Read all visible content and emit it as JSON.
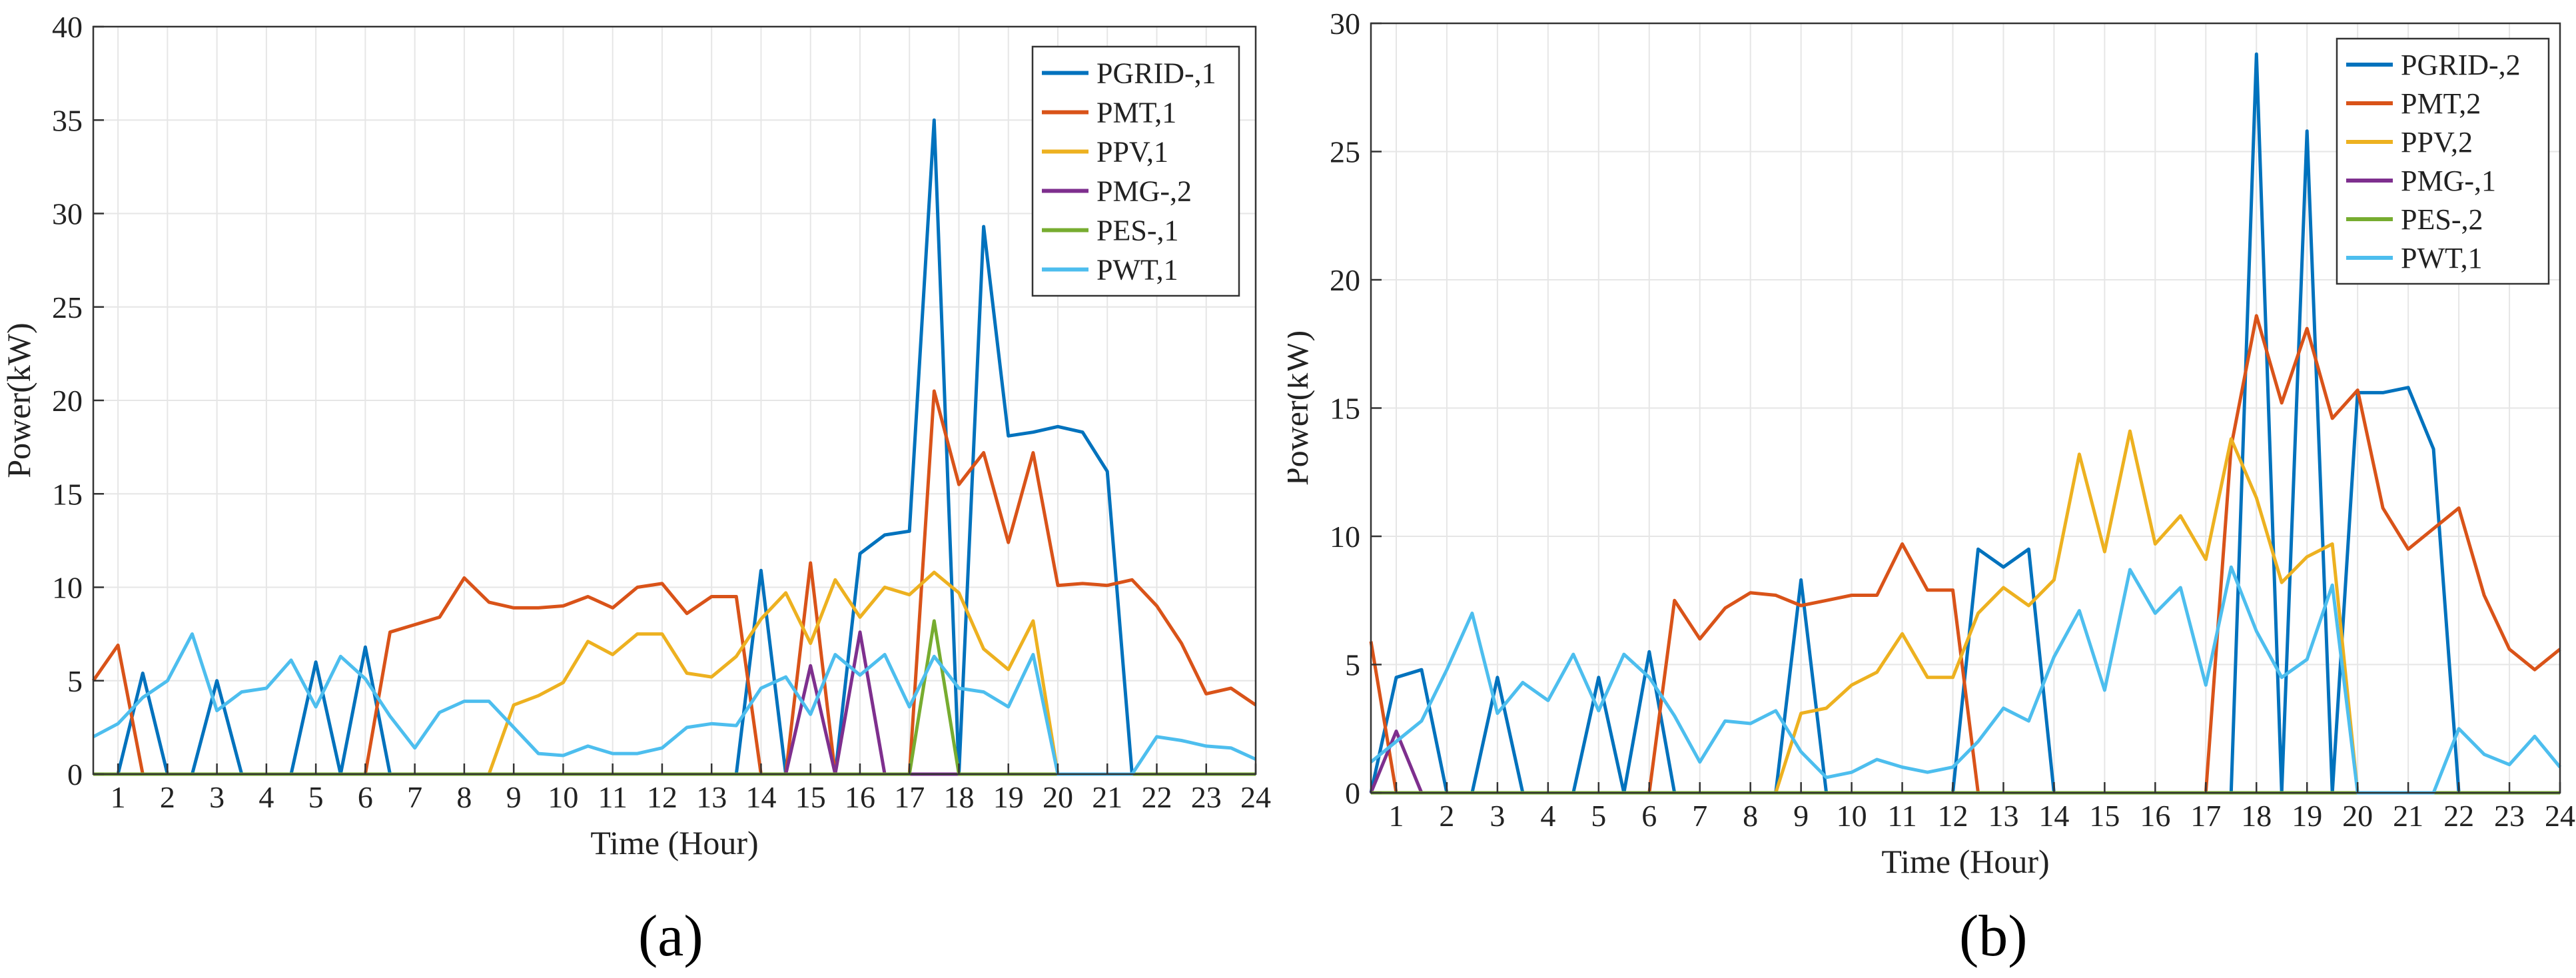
{
  "colors": {
    "grid": "#e6e6e6",
    "axis": "#333333",
    "background": "#ffffff",
    "legend_border": "#333333"
  },
  "captions": {
    "a": "(a)",
    "b": "(b)"
  },
  "chart_data": [
    {
      "type": "line",
      "panel": "a",
      "title": "",
      "xlabel": "Time (Hour)",
      "ylabel": "Power(kW)",
      "xlim": [
        0.5,
        24
      ],
      "ylim": [
        0,
        40
      ],
      "xticks": [
        1,
        2,
        3,
        4,
        5,
        6,
        7,
        8,
        9,
        10,
        11,
        12,
        13,
        14,
        15,
        16,
        17,
        18,
        19,
        20,
        21,
        22,
        23,
        24
      ],
      "yticks": [
        0,
        5,
        10,
        15,
        20,
        25,
        30,
        35,
        40
      ],
      "grid": true,
      "legend_position": "top-right",
      "series": [
        {
          "name": "PGRID-,1",
          "color": "#0072BD",
          "x": [
            0.5,
            1,
            1.5,
            2,
            2.5,
            3,
            3.5,
            4,
            4.5,
            5,
            5.5,
            6,
            6.5,
            7,
            7.5,
            8,
            8.5,
            9,
            9.5,
            10,
            10.5,
            11,
            11.5,
            12,
            12.5,
            13,
            13.5,
            14,
            14.5,
            15,
            15.5,
            16,
            16.5,
            17,
            17.5,
            18,
            18.5,
            19,
            19.5,
            20,
            20.5,
            21,
            21.5,
            22,
            22.5,
            23,
            23.5,
            24
          ],
          "y": [
            0,
            0,
            5.4,
            0,
            0,
            5,
            0,
            0,
            0,
            6,
            0,
            6.8,
            0,
            0,
            0,
            0,
            0,
            0,
            0,
            0,
            0,
            0,
            0,
            0,
            0,
            0,
            0,
            10.9,
            0,
            0,
            0,
            11.8,
            12.8,
            13,
            35,
            0,
            29.3,
            18.1,
            18.3,
            18.6,
            18.3,
            16.2,
            0,
            0,
            0,
            0,
            0,
            0
          ]
        },
        {
          "name": "PMT,1",
          "color": "#D95319",
          "x": [
            0.5,
            1,
            1.5,
            2,
            2.5,
            3,
            3.5,
            4,
            4.5,
            5,
            5.5,
            6,
            6.5,
            7,
            7.5,
            8,
            8.5,
            9,
            9.5,
            10,
            10.5,
            11,
            11.5,
            12,
            12.5,
            13,
            13.5,
            14,
            14.5,
            15,
            15.5,
            16,
            16.5,
            17,
            17.5,
            18,
            18.5,
            19,
            19.5,
            20,
            20.5,
            21,
            21.5,
            22,
            22.5,
            23,
            23.5,
            24
          ],
          "y": [
            5,
            6.9,
            0,
            0,
            0,
            0,
            0,
            0,
            0,
            0,
            0,
            0,
            7.6,
            8,
            8.4,
            10.5,
            9.2,
            8.9,
            8.9,
            9,
            9.5,
            8.9,
            10,
            10.2,
            8.6,
            9.5,
            9.5,
            0,
            0,
            11.3,
            0,
            0,
            0,
            0,
            20.5,
            15.5,
            17.2,
            12.4,
            17.2,
            10.1,
            10.2,
            10.1,
            10.4,
            9,
            7,
            4.3,
            4.6,
            3.7
          ]
        },
        {
          "name": "PPV,1",
          "color": "#EDB120",
          "x": [
            0.5,
            8,
            8.5,
            9,
            9.5,
            10,
            10.5,
            11,
            11.5,
            12,
            12.5,
            13,
            13.5,
            14,
            14.5,
            15,
            15.5,
            16,
            16.5,
            17,
            17.5,
            18,
            18.5,
            19,
            19.5,
            20,
            24
          ],
          "y": [
            0,
            0,
            0,
            3.7,
            4.2,
            4.9,
            7.1,
            6.4,
            7.5,
            7.5,
            5.4,
            5.2,
            6.3,
            8.3,
            9.7,
            7,
            10.4,
            8.4,
            10,
            9.6,
            10.8,
            9.7,
            6.7,
            5.6,
            8.2,
            0,
            0
          ]
        },
        {
          "name": "PMG-,2",
          "color": "#7E2F8E",
          "x": [
            0.5,
            14.5,
            15,
            15.5,
            16,
            16.5,
            17,
            24
          ],
          "y": [
            0,
            0,
            5.8,
            0,
            7.6,
            0,
            0,
            0
          ]
        },
        {
          "name": "PES-,1",
          "color": "#77AC30",
          "x": [
            0.5,
            17,
            17.5,
            18,
            24
          ],
          "y": [
            0,
            0,
            8.2,
            0,
            0
          ]
        },
        {
          "name": "PWT,1",
          "color": "#4DBEEE",
          "x": [
            0.5,
            1,
            1.5,
            2,
            2.5,
            3,
            3.5,
            4,
            4.5,
            5,
            5.5,
            6,
            6.5,
            7,
            7.5,
            8,
            8.5,
            9,
            9.5,
            10,
            10.5,
            11,
            11.5,
            12,
            12.5,
            13,
            13.5,
            14,
            14.5,
            15,
            15.5,
            16,
            16.5,
            17,
            17.5,
            18,
            18.5,
            19,
            19.5,
            20,
            20.5,
            21,
            21.5,
            22,
            22.5,
            23,
            23.5,
            24
          ],
          "y": [
            2,
            2.7,
            4.1,
            5,
            7.5,
            3.4,
            4.4,
            4.6,
            6.1,
            3.6,
            6.3,
            5.1,
            3.1,
            1.4,
            3.3,
            3.9,
            3.9,
            2.5,
            1.1,
            1,
            1.5,
            1.1,
            1.1,
            1.4,
            2.5,
            2.7,
            2.6,
            4.6,
            5.2,
            3.2,
            6.4,
            5.3,
            6.4,
            3.6,
            6.3,
            4.6,
            4.4,
            3.6,
            6.4,
            0,
            0,
            0,
            0,
            2,
            1.8,
            1.5,
            1.4,
            0.8
          ]
        }
      ]
    },
    {
      "type": "line",
      "panel": "b",
      "title": "",
      "xlabel": "Time (Hour)",
      "ylabel": "Power(kW)",
      "xlim": [
        0.5,
        24
      ],
      "ylim": [
        0,
        30
      ],
      "xticks": [
        1,
        2,
        3,
        4,
        5,
        6,
        7,
        8,
        9,
        10,
        11,
        12,
        13,
        14,
        15,
        16,
        17,
        18,
        19,
        20,
        21,
        22,
        23,
        24
      ],
      "yticks": [
        0,
        5,
        10,
        15,
        20,
        25,
        30
      ],
      "grid": true,
      "legend_position": "top-right",
      "series": [
        {
          "name": "PGRID-,2",
          "color": "#0072BD",
          "x": [
            0.5,
            1,
            1.5,
            2,
            2.5,
            3,
            3.5,
            4,
            4.5,
            5,
            5.5,
            6,
            6.5,
            7,
            7.5,
            8,
            8.5,
            9,
            9.5,
            10,
            10.5,
            11,
            11.5,
            12,
            12.5,
            13,
            13.5,
            14,
            14.5,
            15,
            15.5,
            16,
            16.5,
            17,
            17.5,
            18,
            18.5,
            19,
            19.5,
            20,
            20.5,
            21,
            21.5,
            22,
            22.5,
            23,
            23.5,
            24
          ],
          "y": [
            0,
            4.5,
            4.8,
            0,
            0,
            4.5,
            0,
            0,
            0,
            4.5,
            0,
            5.5,
            0,
            0,
            0,
            0,
            0,
            8.3,
            0,
            0,
            0,
            0,
            0,
            0,
            9.5,
            8.8,
            9.5,
            0,
            0,
            0,
            0,
            0,
            0,
            0,
            0,
            28.8,
            0,
            25.8,
            0,
            15.6,
            15.6,
            15.8,
            13.4,
            0,
            0,
            0,
            0,
            0
          ]
        },
        {
          "name": "PMT,2",
          "color": "#D95319",
          "x": [
            0.5,
            1,
            1.5,
            2,
            2.5,
            3,
            3.5,
            4,
            4.5,
            5,
            5.5,
            6,
            6.5,
            7,
            7.5,
            8,
            8.5,
            9,
            9.5,
            10,
            10.5,
            11,
            11.5,
            12,
            12.5,
            13,
            13.5,
            14,
            14.5,
            15,
            15.5,
            16,
            16.5,
            17,
            17.5,
            18,
            18.5,
            19,
            19.5,
            20,
            20.5,
            21,
            21.5,
            22,
            22.5,
            23,
            23.5,
            24
          ],
          "y": [
            5.9,
            0,
            0,
            0,
            0,
            0,
            0,
            0,
            0,
            0,
            0,
            0,
            7.5,
            6,
            7.2,
            7.8,
            7.7,
            7.3,
            7.5,
            7.7,
            7.7,
            9.7,
            7.9,
            7.9,
            0,
            0,
            0,
            0,
            0,
            0,
            0,
            0,
            0,
            0,
            13.5,
            18.6,
            15.2,
            18.1,
            14.6,
            15.7,
            11.1,
            9.5,
            10.3,
            11.1,
            7.7,
            5.6,
            4.8,
            5.6
          ]
        },
        {
          "name": "PPV,2",
          "color": "#EDB120",
          "x": [
            0.5,
            8.5,
            9,
            9.5,
            10,
            10.5,
            11,
            11.5,
            12,
            12.5,
            13,
            13.5,
            14,
            14.5,
            15,
            15.5,
            16,
            16.5,
            17,
            17.5,
            18,
            18.5,
            19,
            19.5,
            20,
            24
          ],
          "y": [
            0,
            0,
            3.1,
            3.3,
            4.2,
            4.7,
            6.2,
            4.5,
            4.5,
            7,
            8,
            7.3,
            8.3,
            13.2,
            9.4,
            14.1,
            9.7,
            10.8,
            9.1,
            13.8,
            11.5,
            8.2,
            9.2,
            9.7,
            0,
            0
          ]
        },
        {
          "name": "PMG-,1",
          "color": "#7E2F8E",
          "x": [
            0.5,
            1,
            1.5,
            2,
            24
          ],
          "y": [
            0,
            2.4,
            0,
            0,
            0
          ]
        },
        {
          "name": "PES-,2",
          "color": "#77AC30",
          "x": [
            0.5,
            24
          ],
          "y": [
            0,
            0
          ]
        },
        {
          "name": "PWT,1",
          "color": "#4DBEEE",
          "x": [
            0.5,
            1,
            1.5,
            2,
            2.5,
            3,
            3.5,
            4,
            4.5,
            5,
            5.5,
            6,
            6.5,
            7,
            7.5,
            8,
            8.5,
            9,
            9.5,
            10,
            10.5,
            11,
            11.5,
            12,
            12.5,
            13,
            13.5,
            14,
            14.5,
            15,
            15.5,
            16,
            16.5,
            17,
            17.5,
            18,
            18.5,
            19,
            19.5,
            20,
            20.5,
            21,
            21.5,
            22,
            22.5,
            23,
            23.5,
            24
          ],
          "y": [
            1.2,
            2,
            2.8,
            4.8,
            7,
            3.1,
            4.3,
            3.6,
            5.4,
            3.2,
            5.4,
            4.5,
            3,
            1.2,
            2.8,
            2.7,
            3.2,
            1.6,
            0.6,
            0.8,
            1.3,
            1,
            0.8,
            1,
            2,
            3.3,
            2.8,
            5.3,
            7.1,
            4,
            8.7,
            7,
            8,
            4.2,
            8.8,
            6.3,
            4.5,
            5.2,
            8.1,
            0,
            0,
            0,
            0,
            2.5,
            1.5,
            1.1,
            2.2,
            1
          ]
        }
      ]
    }
  ]
}
